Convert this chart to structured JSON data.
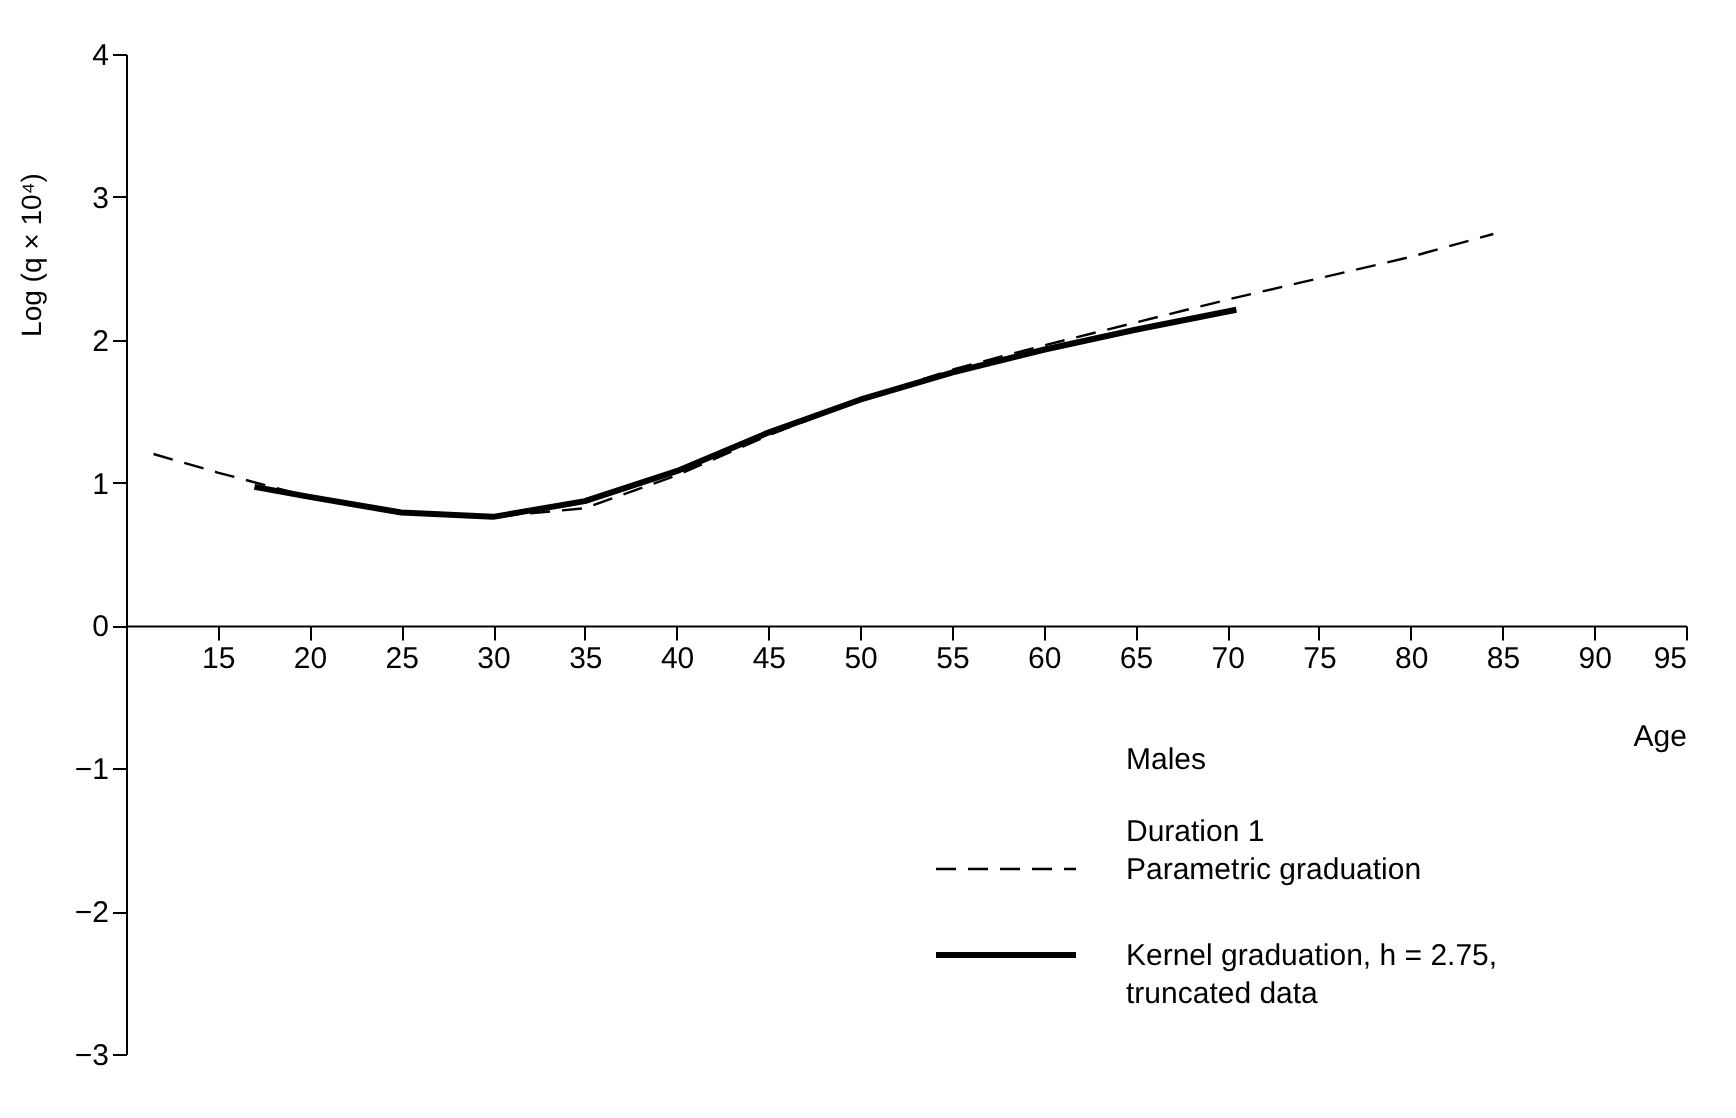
{
  "chart_data": {
    "type": "line",
    "xlabel": "Age",
    "ylabel": "Log (q × 10⁴)",
    "legend_title": "Males",
    "annotations": [
      "Duration 1"
    ],
    "xlim": [
      10,
      95
    ],
    "xticks": [
      15,
      20,
      25,
      30,
      35,
      40,
      45,
      50,
      55,
      60,
      65,
      70,
      75,
      80,
      85,
      90,
      95
    ],
    "ylim": [
      -3,
      4
    ],
    "yticks": [
      -3,
      -2,
      -1,
      0,
      1,
      2,
      3,
      4
    ],
    "grid": false,
    "legend": "bottom right",
    "marker": "none",
    "series": [
      {
        "name": "Parametric graduation",
        "color": "#000000",
        "line_style": "dashed",
        "x": [
          11.5,
          15,
          20,
          25,
          30,
          35,
          40,
          45,
          50,
          55,
          60,
          65,
          70,
          75,
          80,
          84.5
        ],
        "values": [
          1.2,
          1.07,
          0.9,
          0.79,
          0.76,
          0.82,
          1.05,
          1.33,
          1.58,
          1.79,
          1.96,
          2.12,
          2.28,
          2.43,
          2.58,
          2.74
        ]
      },
      {
        "name": "Kernel graduation, h = 2.75, truncated data",
        "color": "#000000",
        "line_style": "solid",
        "x": [
          17,
          20,
          25,
          30,
          35,
          40,
          45,
          50,
          55,
          60,
          65,
          70.5
        ],
        "values": [
          0.97,
          0.9,
          0.79,
          0.76,
          0.87,
          1.08,
          1.35,
          1.58,
          1.77,
          1.93,
          2.07,
          2.21
        ]
      }
    ]
  }
}
